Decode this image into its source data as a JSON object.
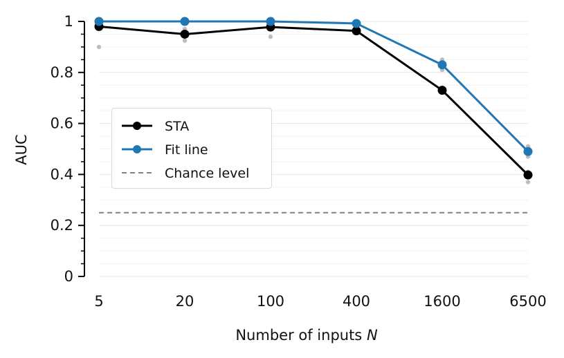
{
  "chart_data": {
    "type": "line",
    "title": "",
    "xlabel": "Number of inputs N",
    "xlabel_prefix": "Number of inputs ",
    "xlabel_var": "N",
    "ylabel": "AUC",
    "categories": [
      "5",
      "20",
      "100",
      "400",
      "1600",
      "6500"
    ],
    "ylim": [
      0,
      1
    ],
    "yticks": [
      {
        "v": 0,
        "label": "0"
      },
      {
        "v": 0.2,
        "label": "0.2"
      },
      {
        "v": 0.4,
        "label": "0.4"
      },
      {
        "v": 0.6,
        "label": "0.6"
      },
      {
        "v": 0.8,
        "label": "0.8"
      },
      {
        "v": 1,
        "label": "1"
      }
    ],
    "grid": true,
    "legend_position": "center-left",
    "series": [
      {
        "name": "STA",
        "color": "#000000",
        "marker": "circle",
        "values": [
          0.98,
          0.95,
          0.978,
          0.963,
          0.73,
          0.398
        ]
      },
      {
        "name": "Fit line",
        "color": "#1f77b4",
        "marker": "circle",
        "values": [
          1.0,
          1.0,
          1.0,
          0.992,
          0.83,
          0.49
        ]
      }
    ],
    "reference_lines": [
      {
        "name": "Chance level",
        "y": 0.25,
        "color": "#808080",
        "style": "dashed"
      }
    ],
    "scatter_points": {
      "color": "#bdbdbd",
      "points": [
        [
          0,
          0.9
        ],
        [
          0,
          0.99
        ],
        [
          1,
          0.925
        ],
        [
          1,
          0.97
        ],
        [
          2,
          0.94
        ],
        [
          2,
          0.99
        ],
        [
          3,
          0.96
        ],
        [
          3,
          0.995
        ],
        [
          4,
          0.74
        ],
        [
          4,
          0.81
        ],
        [
          4,
          0.85
        ],
        [
          5,
          0.37
        ],
        [
          5,
          0.39
        ],
        [
          5,
          0.41
        ],
        [
          5,
          0.47
        ],
        [
          5,
          0.51
        ]
      ]
    }
  }
}
